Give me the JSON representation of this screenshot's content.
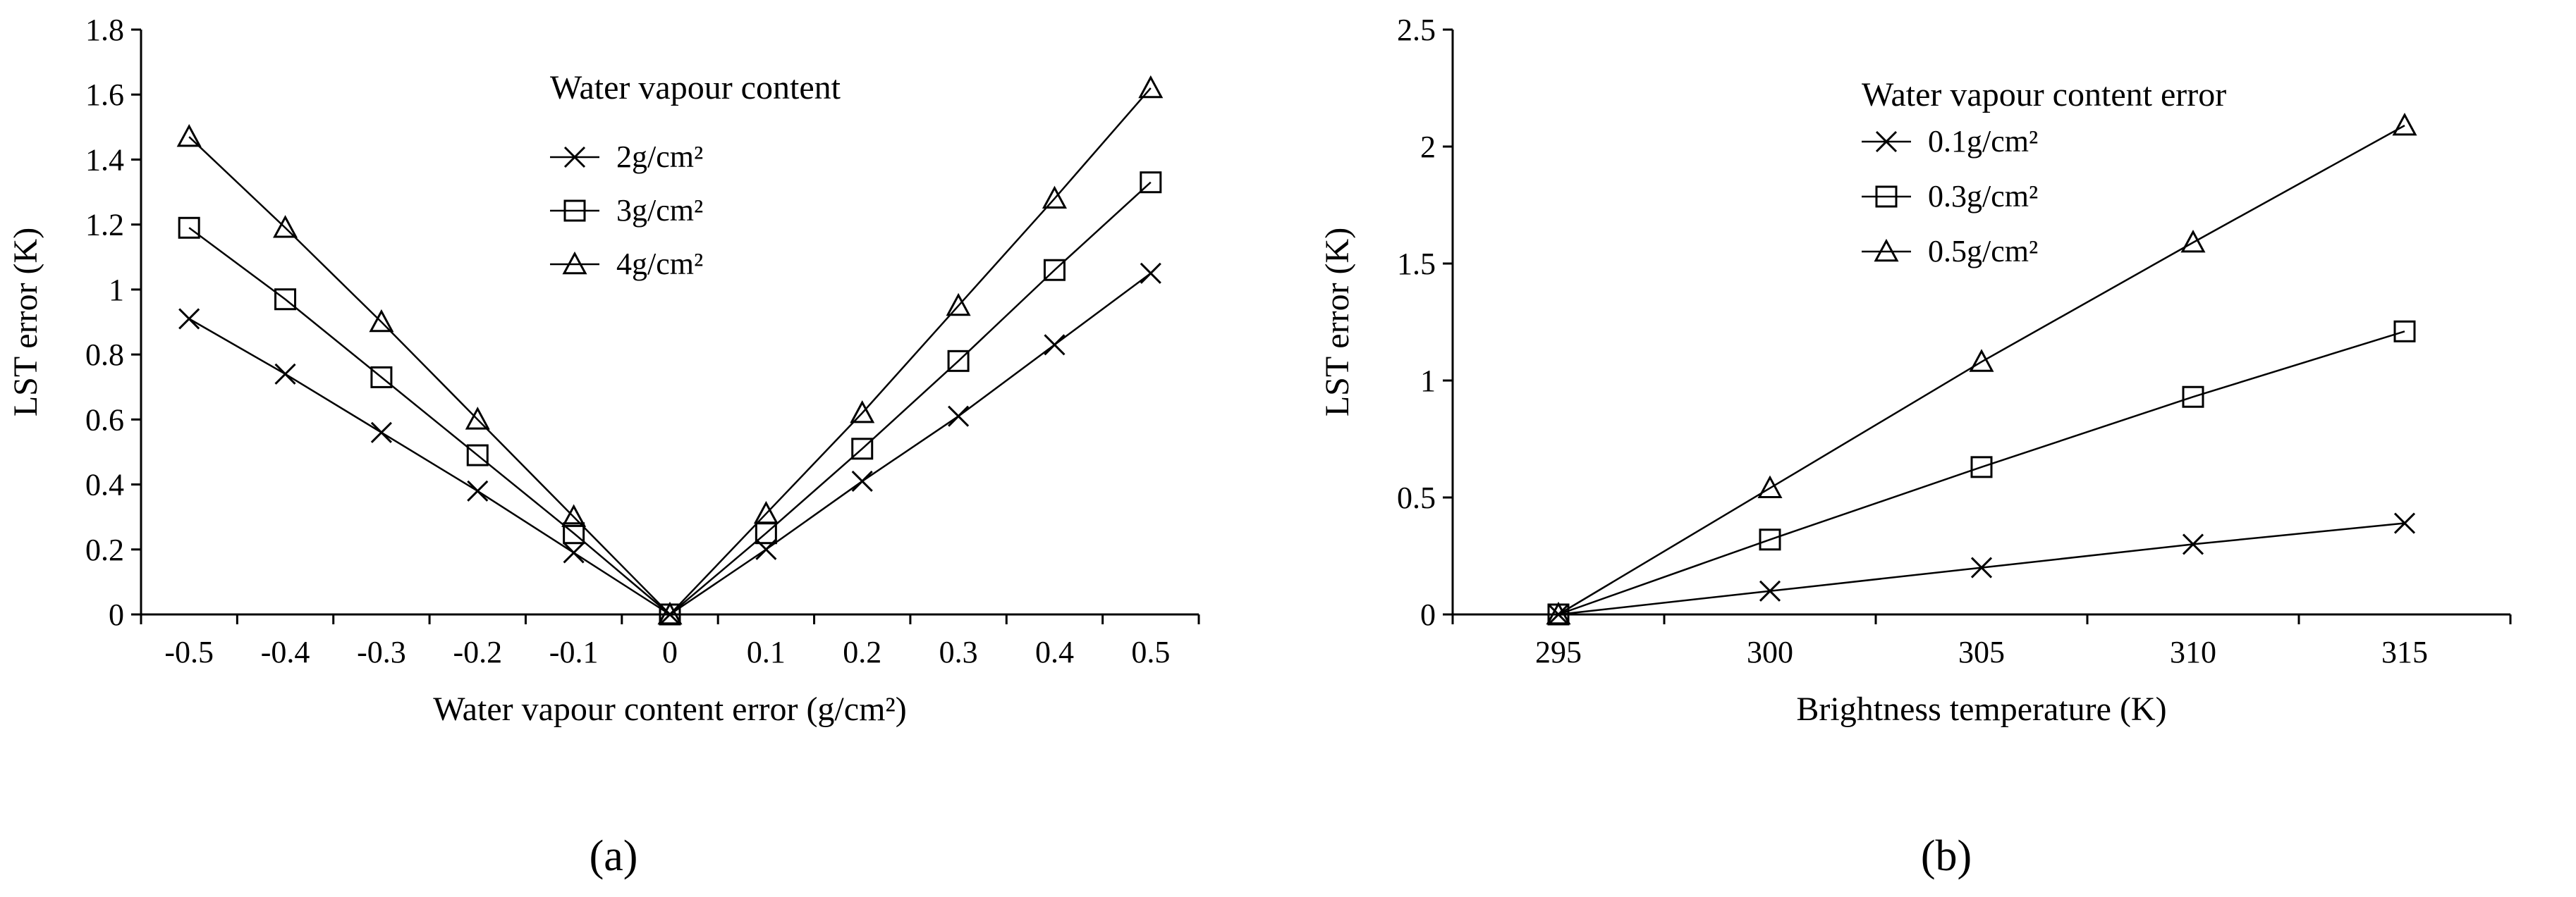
{
  "chart_data": [
    {
      "panel_label": "(a)",
      "type": "line",
      "title": "",
      "xlabel": "Water vapour content error (g/cm²)",
      "ylabel": "LST error (K)",
      "xlim": [
        -0.55,
        0.55
      ],
      "ylim": [
        0,
        1.8
      ],
      "x_ticks": [
        "-0.5",
        "-0.4",
        "-0.3",
        "-0.2",
        "-0.1",
        "0",
        "0.1",
        "0.2",
        "0.3",
        "0.4",
        "0.5"
      ],
      "y_ticks": [
        "0",
        "0.2",
        "0.4",
        "0.6",
        "0.8",
        "1",
        "1.2",
        "1.4",
        "1.6",
        "1.8"
      ],
      "x": [
        -0.5,
        -0.4,
        -0.3,
        -0.2,
        -0.1,
        0,
        0.1,
        0.2,
        0.3,
        0.4,
        0.5
      ],
      "legend_title": "Water vapour content",
      "legend_position": "top-center",
      "grid": false,
      "series": [
        {
          "name": "2g/cm²",
          "marker": "x",
          "values": [
            0.91,
            0.74,
            0.56,
            0.38,
            0.19,
            0,
            0.2,
            0.41,
            0.61,
            0.83,
            1.05
          ]
        },
        {
          "name": "3g/cm²",
          "marker": "square",
          "values": [
            1.19,
            0.97,
            0.73,
            0.49,
            0.25,
            0,
            0.25,
            0.51,
            0.78,
            1.06,
            1.33
          ]
        },
        {
          "name": "4g/cm²",
          "marker": "triangle",
          "values": [
            1.47,
            1.19,
            0.9,
            0.6,
            0.3,
            0,
            0.31,
            0.62,
            0.95,
            1.28,
            1.62
          ]
        }
      ]
    },
    {
      "panel_label": "(b)",
      "type": "line",
      "title": "",
      "xlabel": "Brightness temperature (K)",
      "ylabel": "LST error (K)",
      "xlim": [
        292.5,
        317.5
      ],
      "ylim": [
        0,
        2.5
      ],
      "x_ticks": [
        "295",
        "300",
        "305",
        "310",
        "315"
      ],
      "y_ticks": [
        "0",
        "0.5",
        "1",
        "1.5",
        "2",
        "2.5"
      ],
      "x": [
        295,
        300,
        305,
        310,
        315
      ],
      "legend_title": "Water vapour content error",
      "legend_position": "top-center",
      "grid": false,
      "series": [
        {
          "name": "0.1g/cm²",
          "marker": "x",
          "values": [
            0,
            0.1,
            0.2,
            0.3,
            0.39
          ]
        },
        {
          "name": "0.3g/cm²",
          "marker": "square",
          "values": [
            0,
            0.32,
            0.63,
            0.93,
            1.21
          ]
        },
        {
          "name": "0.5g/cm²",
          "marker": "triangle",
          "values": [
            0,
            0.54,
            1.08,
            1.59,
            2.09
          ]
        }
      ]
    }
  ]
}
